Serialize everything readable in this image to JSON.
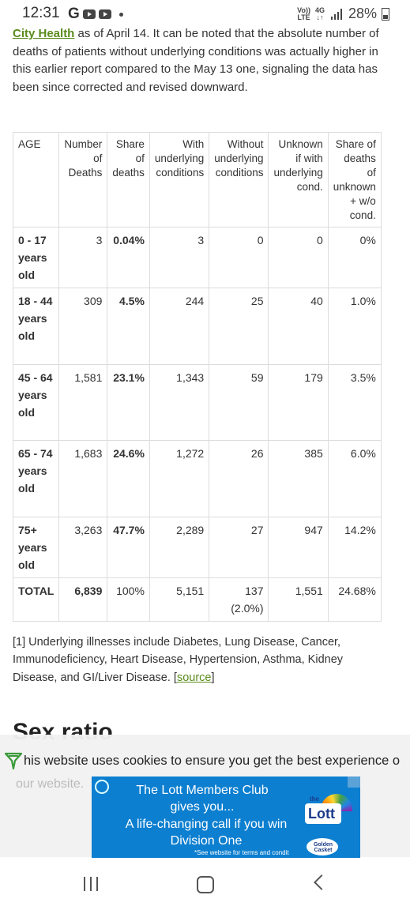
{
  "status_bar": {
    "time": "12:31",
    "network_top": "Vo))",
    "network_bottom": "LTE",
    "signal_top": "4G",
    "signal_bottom": "↓↑",
    "battery_percent": "28%"
  },
  "article": {
    "intro_link": "City Health",
    "intro_text": " as of April 14. It can be noted that the absolute number of deaths of patients without underlying conditions was actually higher in this earlier report compared to the May 13 one, signaling the data has been since corrected and revised downward."
  },
  "table": {
    "headers": [
      "AGE",
      "Number of Deaths",
      "Share of deaths",
      "With underlying conditions",
      "Without underlying conditions",
      "Unknown if with underlying cond.",
      "Share of deaths of unknown + w/o cond."
    ],
    "rows": [
      {
        "age": "0 - 17 years old",
        "deaths": "3",
        "share": "0.04%",
        "with": "3",
        "without": "0",
        "unknown": "0",
        "share_unknown": "0%"
      },
      {
        "age": "18 - 44 years old",
        "deaths": "309",
        "share": "4.5%",
        "with": "244",
        "without": "25",
        "unknown": "40",
        "share_unknown": "1.0%"
      },
      {
        "age": "45 - 64 years old",
        "deaths": "1,581",
        "share": "23.1%",
        "with": "1,343",
        "without": "59",
        "unknown": "179",
        "share_unknown": "3.5%"
      },
      {
        "age": "65 - 74 years old",
        "deaths": "1,683",
        "share": "24.6%",
        "with": "1,272",
        "without": "26",
        "unknown": "385",
        "share_unknown": "6.0%"
      },
      {
        "age": "75+ years old",
        "deaths": "3,263",
        "share": "47.7%",
        "with": "2,289",
        "without": "27",
        "unknown": "947",
        "share_unknown": "14.2%"
      }
    ],
    "total": {
      "age": "TOTAL",
      "deaths": "6,839",
      "share": "100%",
      "with": "5,151",
      "without": "137 (2.0%)",
      "unknown": "1,551",
      "share_unknown": "24.68%"
    }
  },
  "footnote": {
    "text": "[1] Underlying illnesses include Diabetes, Lung Disease, Cancer, Immunodeficiency, Heart Disease, Hypertension, Asthma, Kidney Disease, and GI/Liver Disease. ",
    "source_open": "[",
    "source_label": "source",
    "source_close": "]"
  },
  "section_heading": "Sex ratio",
  "cookie_banner": {
    "text": "his website uses cookies to ensure you get the best experience o",
    "text_line2": "our website."
  },
  "ad": {
    "title": "The Lott Members Club gives you...",
    "body": "A life-changing call if you win Division One",
    "terms": "*See website for terms and condit",
    "logo_small": "the",
    "logo": "Lott",
    "casket": "Golden Casket"
  }
}
